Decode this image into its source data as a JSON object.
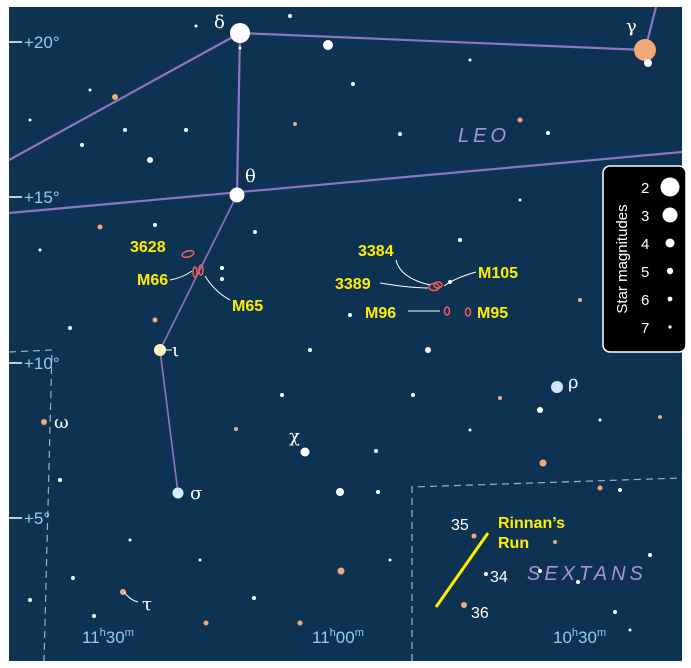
{
  "declination_labels": [
    "+20°",
    "+15°",
    "+10°",
    "+5°"
  ],
  "ra_labels": [
    {
      "hours": "11",
      "minutes": "30"
    },
    {
      "hours": "11",
      "minutes": "00"
    },
    {
      "hours": "10",
      "minutes": "30"
    }
  ],
  "ra_units": {
    "hours": "h",
    "minutes": "m"
  },
  "constellations": [
    "LEO",
    "SEXTANS"
  ],
  "stars": [
    "δ",
    "γ",
    "θ",
    "ι",
    "ω",
    "χ",
    "σ",
    "ρ",
    "τ"
  ],
  "objects": [
    "3628",
    "M66",
    "M65",
    "3384",
    "3389",
    "M105",
    "M96",
    "M95"
  ],
  "asterism": {
    "name": [
      "Rinnan’s",
      "Run"
    ],
    "stars": [
      "35",
      "34",
      "36"
    ]
  },
  "legend": {
    "title": "Star magnitudes",
    "magnitudes": [
      2,
      3,
      4,
      5,
      6,
      7
    ]
  }
}
